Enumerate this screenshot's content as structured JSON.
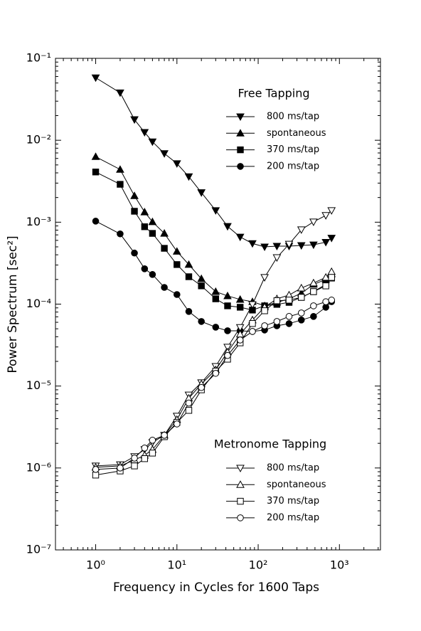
{
  "chart_data": {
    "type": "line",
    "x_label": "Frequency in Cycles for 1600 Taps",
    "y_label": "Power Spectrum [sec²]",
    "log_x": true,
    "log_y": true,
    "xlim": [
      0.32,
      3200
    ],
    "ylim": [
      1e-07,
      0.1
    ],
    "xticks": [
      {
        "value": 1,
        "label": "10⁰"
      },
      {
        "value": 10,
        "label": "10¹"
      },
      {
        "value": 100,
        "label": "10²"
      },
      {
        "value": 1000,
        "label": "10³"
      }
    ],
    "yticks": [
      {
        "value": 1e-07,
        "label": "10⁻⁷"
      },
      {
        "value": 1e-06,
        "label": "10⁻⁶"
      },
      {
        "value": 1e-05,
        "label": "10⁻⁵"
      },
      {
        "value": 0.0001,
        "label": "10⁻⁴"
      },
      {
        "value": 0.001,
        "label": "10⁻³"
      },
      {
        "value": 0.01,
        "label": "10⁻²"
      },
      {
        "value": 0.1,
        "label": "10⁻¹"
      }
    ],
    "xminorticks": [
      0.4,
      0.5,
      0.6,
      0.7,
      0.8,
      0.9,
      2,
      3,
      4,
      5,
      6,
      7,
      8,
      9,
      20,
      30,
      40,
      50,
      60,
      70,
      80,
      90,
      200,
      300,
      400,
      500,
      600,
      700,
      800,
      900,
      2000,
      3000
    ],
    "yminorticks": [
      2e-07,
      3e-07,
      4e-07,
      5e-07,
      6e-07,
      7e-07,
      8e-07,
      9e-07,
      2e-06,
      3e-06,
      4e-06,
      5e-06,
      6e-06,
      7e-06,
      8e-06,
      9e-06,
      2e-05,
      3e-05,
      4e-05,
      5e-05,
      6e-05,
      7e-05,
      8e-05,
      9e-05,
      0.0002,
      0.0003,
      0.0004,
      0.0005,
      0.0006,
      0.0007,
      0.0008,
      0.0009,
      0.002,
      0.003,
      0.004,
      0.005,
      0.006,
      0.007,
      0.008,
      0.009,
      0.02,
      0.03,
      0.04,
      0.05,
      0.06,
      0.07,
      0.08,
      0.09
    ],
    "legends": [
      {
        "title": "Free Tapping"
      },
      {
        "title": "Metronome Tapping"
      }
    ],
    "x": [
      1,
      2,
      3,
      4,
      5,
      7,
      10,
      14,
      20,
      30,
      42,
      60,
      85,
      120,
      170,
      240,
      340,
      480,
      680,
      800
    ],
    "series": [
      {
        "name": "800 ms/tap",
        "legend": 0,
        "marker": "triangle-down",
        "filled": true,
        "color": "#000000",
        "values": [
          0.058,
          0.038,
          0.0179,
          0.0125,
          0.0096,
          0.0069,
          0.0052,
          0.0036,
          0.0023,
          0.00139,
          0.00089,
          0.00066,
          0.00055,
          0.0005,
          0.00051,
          0.00051,
          0.00052,
          0.00053,
          0.00057,
          0.00064
        ]
      },
      {
        "name": "spontaneous",
        "legend": 0,
        "marker": "triangle-up",
        "filled": true,
        "color": "#000000",
        "values": [
          0.0063,
          0.0044,
          0.0021,
          0.00133,
          0.00101,
          0.00073,
          0.00044,
          0.000304,
          0.000204,
          0.000142,
          0.000126,
          0.000114,
          0.000107,
          9.53e-05,
          0.000105,
          0.000116,
          0.000136,
          0.000174,
          0.0002,
          0.000234
        ]
      },
      {
        "name": "370 ms/tap",
        "legend": 0,
        "marker": "square",
        "filled": true,
        "color": "#000000",
        "values": [
          0.0041,
          0.0029,
          0.00136,
          0.00088,
          0.00073,
          0.00048,
          0.000304,
          0.000216,
          0.000167,
          0.000116,
          9.53e-05,
          9.16e-05,
          8.46e-05,
          9.53e-05,
          9.93e-05,
          0.000105,
          0.000121,
          0.000142,
          0.000174,
          0.000208
        ]
      },
      {
        "name": "200 ms/tap",
        "legend": 0,
        "marker": "circle",
        "filled": true,
        "color": "#000000",
        "values": [
          0.00103,
          0.00072,
          0.00042,
          0.00027,
          0.00023,
          0.00016,
          0.000131,
          8.13e-05,
          6.14e-05,
          5.23e-05,
          4.73e-05,
          4.73e-05,
          4.64e-05,
          4.83e-05,
          5.44e-05,
          5.78e-05,
          6.4e-05,
          7.07e-05,
          9.16e-05,
          0.000107
        ]
      },
      {
        "name": "800 ms/tap",
        "legend": 1,
        "marker": "triangle-down",
        "filled": false,
        "color": "#000000",
        "values": [
          1.06e-06,
          1.1e-06,
          1.38e-06,
          1.68e-06,
          2.05e-06,
          2.51e-06,
          4.3e-06,
          7.8e-06,
          1.1e-05,
          1.74e-05,
          2.99e-05,
          5.2e-05,
          9.9e-05,
          0.000212,
          0.00037,
          0.00054,
          0.00081,
          0.00101,
          0.00121,
          0.00139
        ]
      },
      {
        "name": "spontaneous",
        "legend": 1,
        "marker": "triangle-up",
        "filled": false,
        "color": "#000000",
        "values": [
          1.02e-06,
          1.06e-06,
          1.25e-06,
          1.43e-06,
          1.68e-06,
          2.51e-06,
          3.9e-06,
          7.1e-06,
          1.06e-05,
          1.58e-05,
          2.6e-05,
          4.3e-05,
          6.4e-05,
          9.2e-05,
          0.000116,
          0.000129,
          0.000157,
          0.000181,
          0.000212,
          0.000249
        ]
      },
      {
        "name": "370 ms/tap",
        "legend": 1,
        "marker": "square",
        "filled": false,
        "color": "#000000",
        "values": [
          8.2e-07,
          9.2e-07,
          1.06e-06,
          1.3e-06,
          1.52e-06,
          2.41e-06,
          3.6e-06,
          5.05e-06,
          9e-06,
          1.52e-05,
          2.13e-05,
          3.37e-05,
          5.8e-05,
          8.3e-05,
          0.00011,
          0.000112,
          0.000121,
          0.000142,
          0.000167,
          0.000212
        ]
      },
      {
        "name": "200 ms/tap",
        "legend": 1,
        "marker": "circle",
        "filled": false,
        "color": "#000000",
        "values": [
          9.6e-07,
          1e-06,
          1.32e-06,
          1.75e-06,
          2.18e-06,
          2.51e-06,
          3.45e-06,
          6.2e-06,
          9.6e-06,
          1.43e-05,
          2.36e-05,
          3.65e-05,
          4.64e-05,
          5.44e-05,
          6.14e-05,
          7.07e-05,
          7.8e-05,
          9.53e-05,
          0.000107,
          0.000112
        ]
      }
    ]
  }
}
